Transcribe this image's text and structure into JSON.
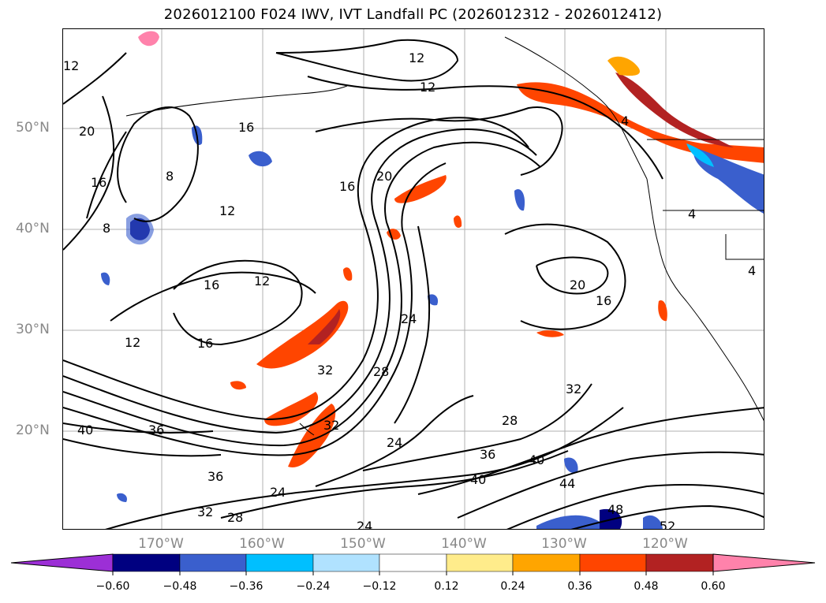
{
  "title": "2026012100 F024 IWV, IVT Landfall PC (2026012312 - 2026012412)",
  "map": {
    "lat_labels": [
      "50°N",
      "40°N",
      "30°N",
      "20°N"
    ],
    "lon_labels": [
      "170°W",
      "160°W",
      "150°W",
      "140°W",
      "130°W",
      "120°W"
    ],
    "contour_labels": [
      "12",
      "12",
      "12",
      "20",
      "16",
      "20",
      "16",
      "8",
      "12",
      "8",
      "16",
      "12",
      "16",
      "12",
      "16",
      "24",
      "32",
      "28",
      "32",
      "28",
      "24",
      "36",
      "40",
      "36",
      "32",
      "28",
      "32",
      "24",
      "36",
      "40",
      "40",
      "44",
      "48",
      "52",
      "20",
      "16",
      "4",
      "4",
      "4",
      "24"
    ]
  },
  "colorbar": {
    "ticks": [
      "−0.60",
      "−0.48",
      "−0.36",
      "−0.24",
      "−0.12",
      "0.12",
      "0.24",
      "0.36",
      "0.48",
      "0.60"
    ],
    "colors": [
      "#9c2fd6",
      "#000080",
      "#3a5fcd",
      "#00bfff",
      "#b0e2ff",
      "#ffffff",
      "#ffec8b",
      "#ffa500",
      "#ff4500",
      "#b22222",
      "#ff82ab"
    ]
  }
}
